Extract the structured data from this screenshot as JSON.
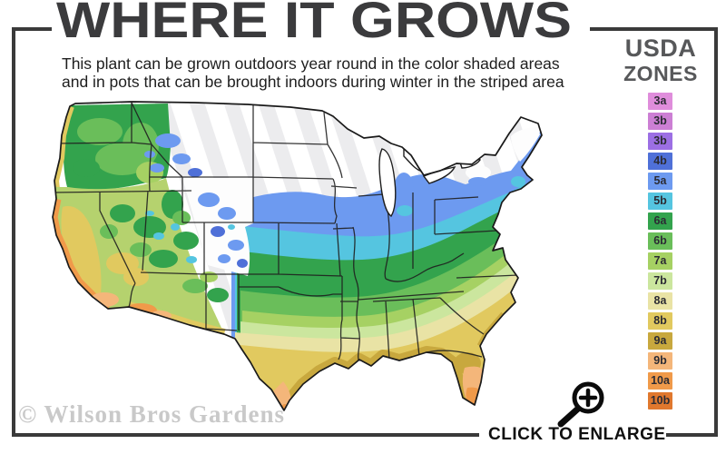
{
  "title": "WHERE IT GROWS",
  "subtitle": {
    "line1": "This plant can be grown outdoors year round in the color shaded areas",
    "line2": "and in pots that can be brought indoors during winter in the striped area"
  },
  "legend": {
    "heading_line1": "USDA",
    "heading_line2": "ZONES",
    "zones": [
      {
        "id": "z3a",
        "label": "3a",
        "color": "#df8ddb"
      },
      {
        "id": "z3b1",
        "label": "3b",
        "color": "#cc7fd4"
      },
      {
        "id": "z3b2",
        "label": "3b",
        "color": "#9c6fe4"
      },
      {
        "id": "z4b",
        "label": "4b",
        "color": "#4f70d8"
      },
      {
        "id": "z5a",
        "label": "5a",
        "color": "#6d9af0"
      },
      {
        "id": "z5b",
        "label": "5b",
        "color": "#55c5e0"
      },
      {
        "id": "z6a",
        "label": "6a",
        "color": "#33a34d"
      },
      {
        "id": "z6b",
        "label": "6b",
        "color": "#6abe5a"
      },
      {
        "id": "z7a",
        "label": "7a",
        "color": "#a6d163"
      },
      {
        "id": "z7b",
        "label": "7b",
        "color": "#cbe69e"
      },
      {
        "id": "z8a",
        "label": "8a",
        "color": "#e9e3a5"
      },
      {
        "id": "z8b",
        "label": "8b",
        "color": "#e1c95f"
      },
      {
        "id": "z9a",
        "label": "9a",
        "color": "#c8a83e"
      },
      {
        "id": "z9b",
        "label": "9b",
        "color": "#f4b67a"
      },
      {
        "id": "z10a",
        "label": "10a",
        "color": "#f09a4a"
      },
      {
        "id": "z10b",
        "label": "10b",
        "color": "#e0782e"
      }
    ]
  },
  "map": {
    "description": "USDA plant hardiness zones map of the continental United States; striped white area indicates indoor-overwinter region",
    "palette": {
      "stripe": "#ececee",
      "white_zone": "#fdfdfd",
      "west_base": "#b5d26e",
      "lake": "#ffffff",
      "state_border": "#1f1f1f",
      "outline": "#1a1a1a"
    }
  },
  "watermark": "© Wilson Bros Gardens",
  "enlarge": {
    "label": "CLICK TO ENLARGE",
    "icon": "magnifier-plus-icon"
  }
}
